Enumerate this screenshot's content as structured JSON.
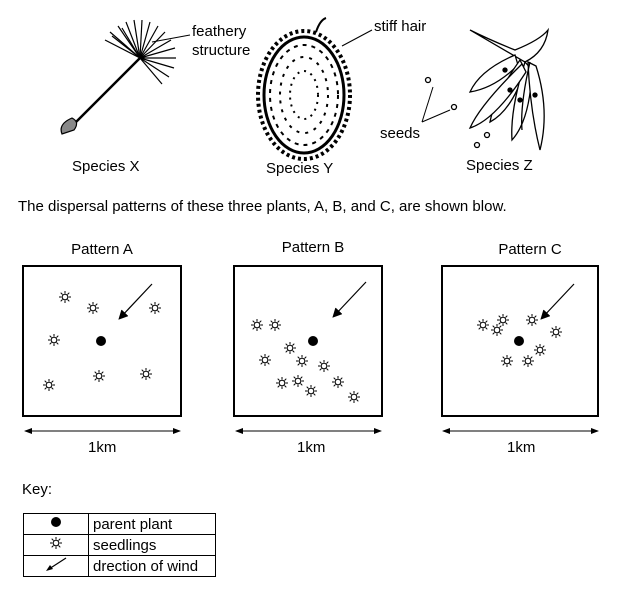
{
  "species": [
    {
      "caption": "Species X",
      "label": "feathery structure",
      "label_line1": "feathery",
      "label_line2": "structure"
    },
    {
      "caption": "Species Y",
      "label": "stiff hair"
    },
    {
      "caption": "Species Z",
      "label": "seeds"
    }
  ],
  "intro_text": "The dispersal patterns of these three plants, A, B, and C, are shown blow.",
  "patterns": [
    {
      "title": "Pattern A",
      "scale_label": "1km"
    },
    {
      "title": "Pattern B",
      "scale_label": "1km"
    },
    {
      "title": "Pattern C",
      "scale_label": "1km"
    }
  ],
  "key": {
    "title": "Key:",
    "rows": [
      {
        "symbol": "filled-dot",
        "label": "parent plant"
      },
      {
        "symbol": "star-outline",
        "label": "seedlings"
      },
      {
        "symbol": "arrow",
        "label": "drection of wind"
      }
    ]
  }
}
